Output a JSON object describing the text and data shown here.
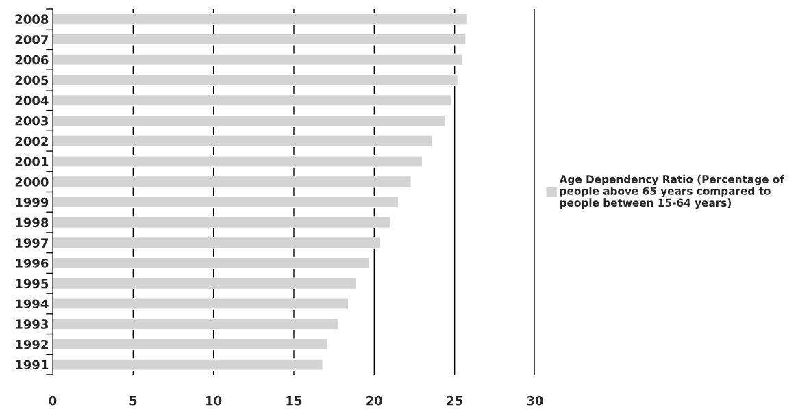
{
  "chart_data": {
    "type": "bar",
    "orientation": "horizontal",
    "categories": [
      "2008",
      "2007",
      "2006",
      "2005",
      "2004",
      "2003",
      "2002",
      "2001",
      "2000",
      "1999",
      "1998",
      "1997",
      "1996",
      "1995",
      "1994",
      "1993",
      "1992",
      "1991"
    ],
    "series": [
      {
        "name": "Age Dependency Ratio (Percentage of people above 65 years compared to people between 15-64 years)",
        "color": "#d3d3d3",
        "values": [
          25.8,
          25.7,
          25.5,
          25.2,
          24.8,
          24.4,
          23.6,
          23.0,
          22.3,
          21.5,
          21.0,
          20.4,
          19.7,
          18.9,
          18.4,
          17.8,
          17.1,
          16.8
        ]
      }
    ],
    "xlim": [
      0,
      30
    ],
    "xticks": [
      0,
      5,
      10,
      15,
      20,
      25,
      30
    ],
    "grid": "x",
    "legend": "right"
  }
}
